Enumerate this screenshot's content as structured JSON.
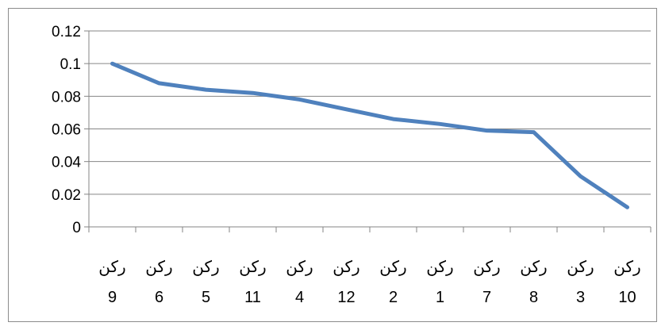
{
  "chart_data": {
    "type": "line",
    "title": "",
    "xlabel": "",
    "ylabel": "",
    "ylim": [
      0,
      0.12
    ],
    "y_ticks": [
      "0",
      "0.02",
      "0.04",
      "0.06",
      "0.08",
      "0.1",
      "0.12"
    ],
    "grid": true,
    "legend": "none",
    "categories": [
      {
        "word": "ركن",
        "num": "9"
      },
      {
        "word": "ركن",
        "num": "6"
      },
      {
        "word": "ركن",
        "num": "5"
      },
      {
        "word": "ركن",
        "num": "11"
      },
      {
        "word": "ركن",
        "num": "4"
      },
      {
        "word": "ركن",
        "num": "12"
      },
      {
        "word": "ركن",
        "num": "2"
      },
      {
        "word": "ركن",
        "num": "1"
      },
      {
        "word": "ركن",
        "num": "7"
      },
      {
        "word": "ركن",
        "num": "8"
      },
      {
        "word": "ركن",
        "num": "3"
      },
      {
        "word": "ركن",
        "num": "10"
      }
    ],
    "series": [
      {
        "color": "#4f81bd",
        "values": [
          0.1,
          0.088,
          0.084,
          0.082,
          0.078,
          0.072,
          0.066,
          0.063,
          0.059,
          0.058,
          0.031,
          0.012
        ]
      }
    ]
  }
}
